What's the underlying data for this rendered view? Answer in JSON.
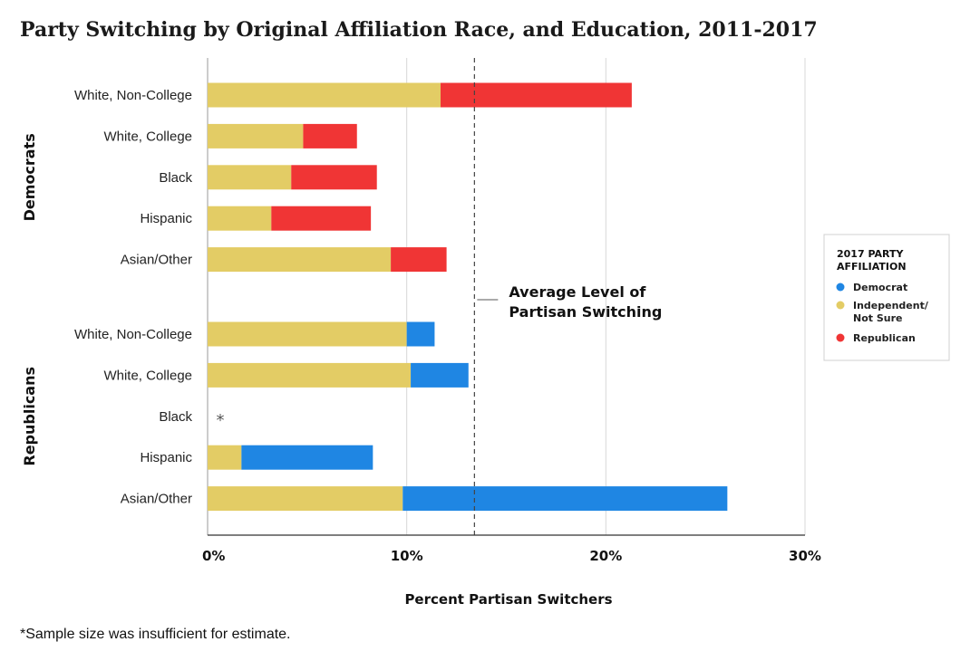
{
  "chart_data": {
    "type": "bar",
    "orientation": "horizontal",
    "stacked": true,
    "title": "Party Switching by Original Affiliation Race, and Education, 2011-2017",
    "xlabel": "Percent Partisan Switchers",
    "xlim": [
      0,
      30
    ],
    "xticks": [
      "0%",
      "10%",
      "20%",
      "30%"
    ],
    "grid": true,
    "colors": {
      "Democrat": "#1f86e3",
      "Independent/Not Sure": "#e3cc65",
      "Republican": "#f03535"
    },
    "legend": {
      "position": "right",
      "title_lines": [
        "2017 PARTY",
        "AFFILIATION"
      ],
      "items": [
        {
          "key": "Democrat",
          "lines": [
            "Democrat"
          ]
        },
        {
          "key": "Independent/Not Sure",
          "lines": [
            "Independent/",
            "Not Sure"
          ]
        },
        {
          "key": "Republican",
          "lines": [
            "Republican"
          ]
        }
      ]
    },
    "reference_line": {
      "value": 13.4,
      "label_lines": [
        "Average Level of",
        "Partisan Switching"
      ]
    },
    "groups": [
      {
        "name": "Democrats",
        "rows": [
          {
            "category": "White, Non-College",
            "segments": [
              {
                "series": "Independent/Not Sure",
                "value": 11.7
              },
              {
                "series": "Republican",
                "value": 9.6
              }
            ]
          },
          {
            "category": "White, College",
            "segments": [
              {
                "series": "Independent/Not Sure",
                "value": 4.8
              },
              {
                "series": "Republican",
                "value": 2.7
              }
            ]
          },
          {
            "category": "Black",
            "segments": [
              {
                "series": "Independent/Not Sure",
                "value": 4.2
              },
              {
                "series": "Republican",
                "value": 4.3
              }
            ]
          },
          {
            "category": "Hispanic",
            "segments": [
              {
                "series": "Independent/Not Sure",
                "value": 3.2
              },
              {
                "series": "Republican",
                "value": 5.0
              }
            ]
          },
          {
            "category": "Asian/Other",
            "segments": [
              {
                "series": "Independent/Not Sure",
                "value": 9.2
              },
              {
                "series": "Republican",
                "value": 2.8
              }
            ]
          }
        ]
      },
      {
        "name": "Republicans",
        "rows": [
          {
            "category": "White, Non-College",
            "segments": [
              {
                "series": "Independent/Not Sure",
                "value": 10.0
              },
              {
                "series": "Democrat",
                "value": 1.4
              }
            ]
          },
          {
            "category": "White, College",
            "segments": [
              {
                "series": "Independent/Not Sure",
                "value": 10.2
              },
              {
                "series": "Democrat",
                "value": 2.9
              }
            ]
          },
          {
            "category": "Black",
            "segments": [],
            "marker": "*"
          },
          {
            "category": "Hispanic",
            "segments": [
              {
                "series": "Independent/Not Sure",
                "value": 1.7
              },
              {
                "series": "Democrat",
                "value": 6.6
              }
            ]
          },
          {
            "category": "Asian/Other",
            "segments": [
              {
                "series": "Independent/Not Sure",
                "value": 9.8
              },
              {
                "series": "Democrat",
                "value": 16.3
              }
            ]
          }
        ]
      }
    ],
    "footnote": "*Sample size was insufficient for estimate."
  }
}
